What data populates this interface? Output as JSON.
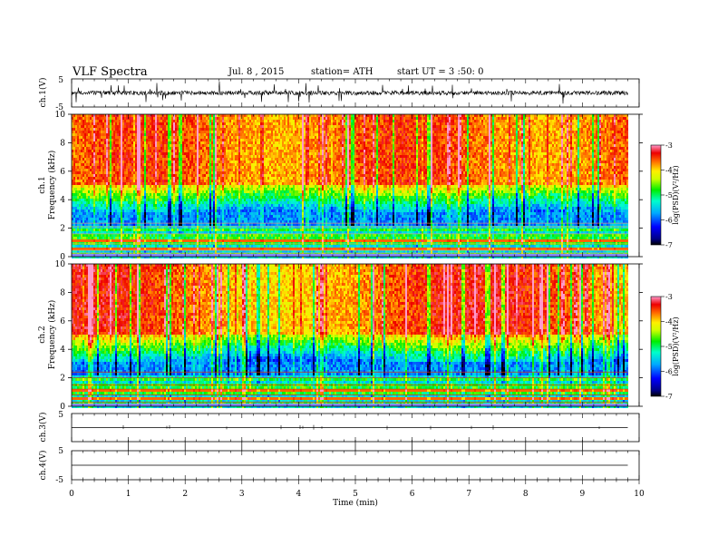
{
  "header": {
    "title": "VLF  Spectra",
    "date": "Jul.  8  , 2015",
    "station": "station= ATH",
    "start": "start  UT  =   3  :50: 0"
  },
  "chart_data": [
    {
      "type": "line",
      "panel": "ch1-waveform",
      "ylabel": "ch.1(V)",
      "ylim": [
        -5,
        5
      ],
      "yticks": [
        "5",
        "-5"
      ],
      "baseline_v": 0,
      "amplitude_v": 1.5
    },
    {
      "type": "heatmap",
      "panel": "ch1-spectrogram",
      "ylabel_top": "ch.1",
      "ylabel": "Frequency  (kHz)",
      "ylim": [
        0,
        10
      ],
      "yticks": [
        "0",
        "2",
        "4",
        "6",
        "8",
        "10"
      ],
      "colorbar": {
        "label": "log(PSD)(V²/Hz)",
        "range": [
          -7,
          -3
        ],
        "ticks": [
          "-3",
          "-4",
          "-5",
          "-6",
          "-7"
        ]
      }
    },
    {
      "type": "heatmap",
      "panel": "ch2-spectrogram",
      "ylabel_top": "ch.2",
      "ylabel": "Frequency  (kHz)",
      "ylim": [
        0,
        10
      ],
      "yticks": [
        "0",
        "2",
        "4",
        "6",
        "8",
        "10"
      ],
      "colorbar": {
        "label": "log(PSD)(V²/Hz)",
        "range": [
          -7,
          -3
        ],
        "ticks": [
          "-3",
          "-4",
          "-5",
          "-6",
          "-7"
        ]
      }
    },
    {
      "type": "line",
      "panel": "ch3-waveform",
      "ylabel": "ch.3(V)",
      "ylim": [
        -5,
        5
      ],
      "yticks": [
        "5"
      ],
      "baseline_v": 0
    },
    {
      "type": "line",
      "panel": "ch4-waveform",
      "ylabel": "ch.4(V)",
      "ylim": [
        -5,
        5
      ],
      "yticks": [
        "5",
        "-5"
      ],
      "baseline_v": 0
    }
  ],
  "xaxis": {
    "label": "Time  (min)",
    "range": [
      0,
      10
    ],
    "data_end": 9.8,
    "ticks": [
      "0",
      "1",
      "2",
      "3",
      "4",
      "5",
      "6",
      "7",
      "8",
      "9",
      "10"
    ]
  }
}
